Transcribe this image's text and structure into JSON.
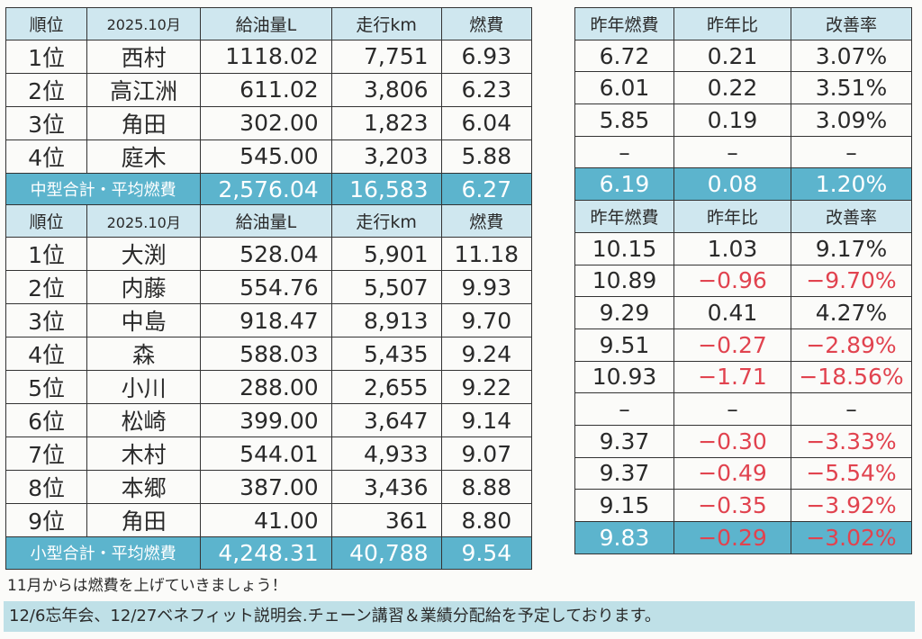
{
  "colors": {
    "header_bg": "#cfe7ef",
    "summary_bg": "#5cb4cd",
    "negative": "#e1434f",
    "footer_bg": "#bfe0e7"
  },
  "headers_left": [
    "順位",
    "2025.10月",
    "給油量L",
    "走行km",
    "燃費"
  ],
  "headers_right": [
    "昨年燃費",
    "昨年比",
    "改善率"
  ],
  "medium": {
    "rows": [
      {
        "rank": "1位",
        "name": "西村",
        "fuel": "1118.02",
        "km": "7,751",
        "eff": "6.93",
        "last": "6.72",
        "diff": "0.21",
        "rate": "3.07%"
      },
      {
        "rank": "2位",
        "name": "高江洲",
        "fuel": "611.02",
        "km": "3,806",
        "eff": "6.23",
        "last": "6.01",
        "diff": "0.22",
        "rate": "3.51%"
      },
      {
        "rank": "3位",
        "name": "角田",
        "fuel": "302.00",
        "km": "1,823",
        "eff": "6.04",
        "last": "5.85",
        "diff": "0.19",
        "rate": "3.09%"
      },
      {
        "rank": "4位",
        "name": "庭木",
        "fuel": "545.00",
        "km": "3,203",
        "eff": "5.88",
        "last": "–",
        "diff": "–",
        "rate": "–"
      }
    ],
    "summary": {
      "label": "中型合計・平均燃費",
      "fuel": "2,576.04",
      "km": "16,583",
      "eff": "6.27",
      "last": "6.19",
      "diff": "0.08",
      "rate": "1.20%"
    }
  },
  "small": {
    "rows": [
      {
        "rank": "1位",
        "name": "大渕",
        "fuel": "528.04",
        "km": "5,901",
        "eff": "11.18",
        "last": "10.15",
        "diff": "1.03",
        "rate": "9.17%"
      },
      {
        "rank": "2位",
        "name": "内藤",
        "fuel": "554.76",
        "km": "5,507",
        "eff": "9.93",
        "last": "10.89",
        "diff": "−0.96",
        "rate": "−9.70%"
      },
      {
        "rank": "3位",
        "name": "中島",
        "fuel": "918.47",
        "km": "8,913",
        "eff": "9.70",
        "last": "9.29",
        "diff": "0.41",
        "rate": "4.27%"
      },
      {
        "rank": "4位",
        "name": "森",
        "fuel": "588.03",
        "km": "5,435",
        "eff": "9.24",
        "last": "9.51",
        "diff": "−0.27",
        "rate": "−2.89%"
      },
      {
        "rank": "5位",
        "name": "小川",
        "fuel": "288.00",
        "km": "2,655",
        "eff": "9.22",
        "last": "10.93",
        "diff": "−1.71",
        "rate": "−18.56%"
      },
      {
        "rank": "6位",
        "name": "松崎",
        "fuel": "399.00",
        "km": "3,647",
        "eff": "9.14",
        "last": "–",
        "diff": "–",
        "rate": "–"
      },
      {
        "rank": "7位",
        "name": "木村",
        "fuel": "544.01",
        "km": "4,933",
        "eff": "9.07",
        "last": "9.37",
        "diff": "−0.30",
        "rate": "−3.33%"
      },
      {
        "rank": "8位",
        "name": "本郷",
        "fuel": "387.00",
        "km": "3,436",
        "eff": "8.88",
        "last": "9.37",
        "diff": "−0.49",
        "rate": "−5.54%"
      },
      {
        "rank": "9位",
        "name": "角田",
        "fuel": "41.00",
        "km": "361",
        "eff": "8.80",
        "last": "9.15",
        "diff": "−0.35",
        "rate": "−3.92%"
      }
    ],
    "summary": {
      "label": "小型合計・平均燃費",
      "fuel": "4,248.31",
      "km": "40,788",
      "eff": "9.54",
      "last": "9.83",
      "diff": "−0.29",
      "rate": "−3.02%"
    }
  },
  "note": "11月からは燃費を上げていきましょう！",
  "footer": "12/6忘年会、12/27ベネフィット説明会.チェーン講習＆業績分配給を予定しております。"
}
